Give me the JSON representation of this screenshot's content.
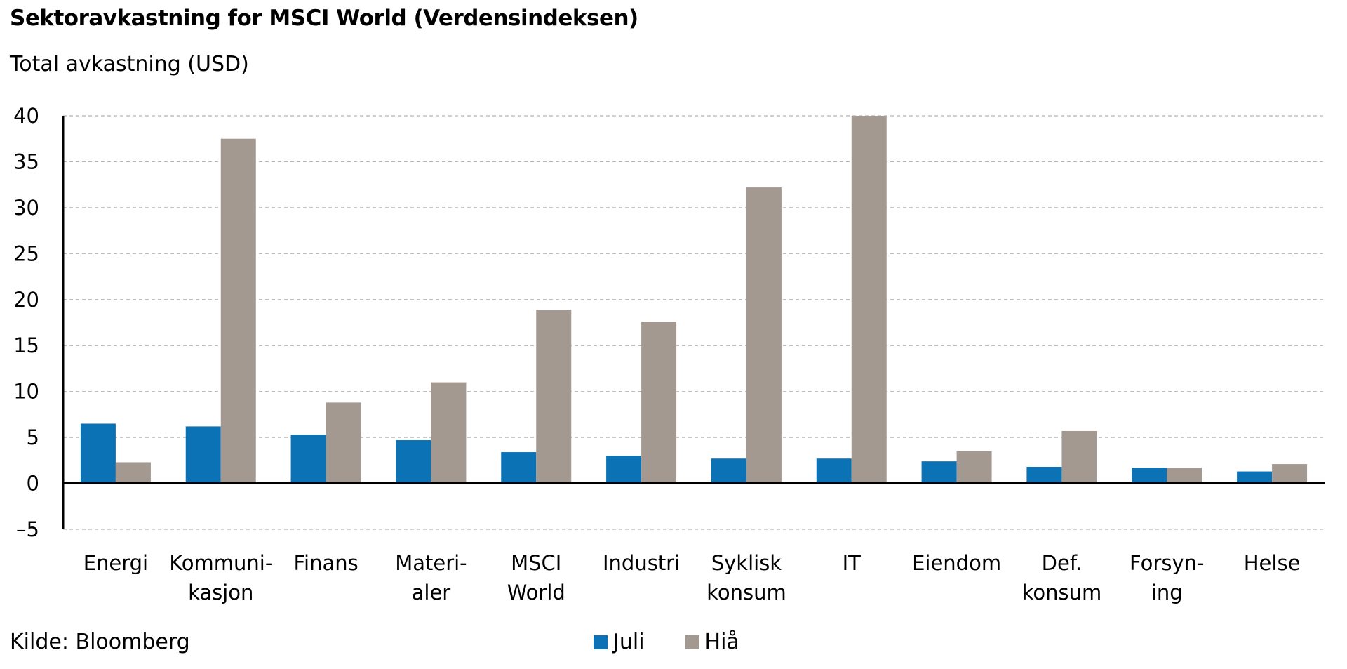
{
  "header": {
    "title": "Sektoravkastning for MSCI World (Verdensindeksen)",
    "subtitle": "Total avkastning (USD)"
  },
  "footer": {
    "source": "Kilde: Bloomberg"
  },
  "colors": {
    "juli": "#0b72b5",
    "hia": "#a39990",
    "grid": "#b5b5b5",
    "axis": "#000000"
  },
  "chart_data": {
    "type": "bar",
    "categories": [
      [
        "Energi"
      ],
      [
        "Kommuni-",
        "kasjon"
      ],
      [
        "Finans"
      ],
      [
        "Materi-",
        "aler"
      ],
      [
        "MSCI",
        "World"
      ],
      [
        "Industri"
      ],
      [
        "Syklisk",
        "konsum"
      ],
      [
        "IT"
      ],
      [
        "Eiendom"
      ],
      [
        "Def.",
        "konsum"
      ],
      [
        "Forsyn-",
        "ing"
      ],
      [
        "Helse"
      ]
    ],
    "series": [
      {
        "name": "Juli",
        "color": "#0b72b5",
        "values": [
          6.5,
          6.2,
          5.3,
          4.7,
          3.4,
          3.0,
          2.7,
          2.7,
          2.4,
          1.8,
          1.7,
          1.3
        ]
      },
      {
        "name": "Hiå",
        "color": "#a39990",
        "values": [
          2.3,
          37.5,
          8.8,
          11.0,
          18.9,
          17.6,
          32.2,
          40.0,
          3.5,
          5.7,
          1.7,
          2.1
        ]
      }
    ],
    "ylim": [
      -5,
      40
    ],
    "yticks": [
      -5,
      0,
      5,
      10,
      15,
      20,
      25,
      30,
      35,
      40
    ],
    "grid": true,
    "legend_position": "bottom-center"
  }
}
